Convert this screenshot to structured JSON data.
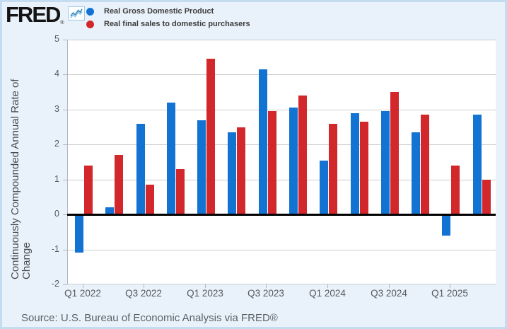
{
  "header": {
    "logo_text": "FRED"
  },
  "legend": [
    {
      "label": "Real Gross Domestic Product",
      "color": "#1273d2"
    },
    {
      "label": "Real final sales to domestic purchasers",
      "color": "#d2282b"
    }
  ],
  "chart_data": {
    "type": "bar",
    "title": "",
    "xlabel": "",
    "ylabel": "Continuously Compounded Annual Rate of Change",
    "ylabel_lines": [
      "Continuously Compounded Annual Rate of",
      "Change"
    ],
    "ylim": [
      -2,
      5
    ],
    "yticks": [
      5,
      4,
      3,
      2,
      1,
      0,
      -1,
      -2
    ],
    "grid": true,
    "legend_position": "top",
    "categories": [
      "Q1 2022",
      "Q2 2022",
      "Q3 2022",
      "Q4 2022",
      "Q1 2023",
      "Q2 2023",
      "Q3 2023",
      "Q4 2023",
      "Q1 2024",
      "Q2 2024",
      "Q3 2024",
      "Q4 2024",
      "Q1 2025",
      "Q2 2025"
    ],
    "x_tick_labels": [
      "Q1 2022",
      "Q3 2022",
      "Q1 2023",
      "Q3 2023",
      "Q1 2024",
      "Q3 2024",
      "Q1 2025"
    ],
    "x_tick_every": 2,
    "series": [
      {
        "name": "Real Gross Domestic Product",
        "key": "gdp",
        "color": "#1273d2",
        "values": [
          -1.1,
          0.2,
          2.6,
          3.2,
          2.7,
          2.35,
          4.15,
          3.05,
          1.55,
          2.9,
          2.95,
          2.35,
          -0.6,
          2.85
        ]
      },
      {
        "name": "Real final sales to domestic purchasers",
        "key": "final-sales",
        "color": "#d2282b",
        "values": [
          1.4,
          1.7,
          0.85,
          1.3,
          4.45,
          2.5,
          2.95,
          3.4,
          2.6,
          2.65,
          3.5,
          2.85,
          1.4,
          1.0
        ]
      }
    ]
  },
  "source": {
    "text": "Source: U.S. Bureau of Economic Analysis via FRED®"
  },
  "colors": {
    "background": "#e9f2fa",
    "frame_border": "#c3dcf0",
    "plot_background": "#ffffff",
    "gridline": "#cccccc",
    "zero_line": "#000000",
    "axis_text": "#555b61"
  }
}
